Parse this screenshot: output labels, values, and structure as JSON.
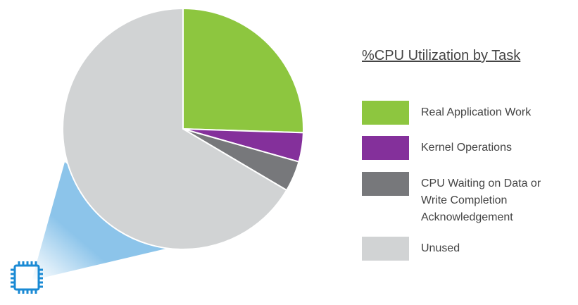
{
  "chart_data": {
    "type": "pie",
    "legend_title": "%CPU Utilization by Task",
    "categories": [
      "Real Application Work",
      "Kernel Operations",
      "CPU Waiting on Data or Write Completion Acknowledgement",
      "Unused"
    ],
    "values": [
      25.5,
      3.9,
      4.1,
      66.5
    ],
    "colors": [
      "#8dc63f",
      "#84309b",
      "#77787b",
      "#d1d3d4"
    ],
    "legend": "right"
  }
}
